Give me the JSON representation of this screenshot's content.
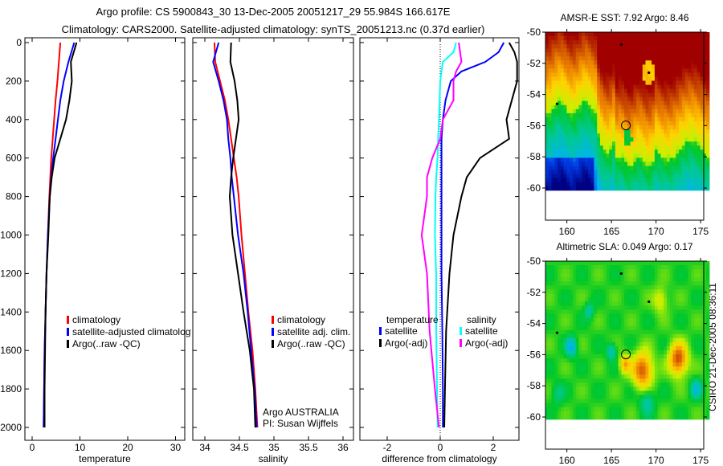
{
  "title_line1": "Argo profile: CS 5900843_30 13-Dec-2005 20051217_29 55.984S 166.617E",
  "title_line2": "Climatology: CARS2000. Satellite-adjusted climatology: synTS_20051213.nc (0.37d earlier)",
  "footer_vertical": "CSIRO 21-Dec-2005 08:36:11",
  "colors": {
    "red": "#ff0000",
    "blue": "#0000ff",
    "black": "#000000",
    "cyan": "#00ffff",
    "magenta": "#ff00ff"
  },
  "chart_data": [
    {
      "type": "line",
      "xlabel": "temperature",
      "ylabel": "",
      "xlim": [
        -0.5,
        32
      ],
      "ylim": [
        2000,
        0
      ],
      "xticks": [
        "0",
        "10",
        "20",
        "30"
      ],
      "xtick_values": [
        0,
        10,
        20,
        30
      ],
      "yticks": [
        "0",
        "200",
        "400",
        "600",
        "800",
        "1000",
        "1200",
        "1400",
        "1600",
        "1800",
        "2000"
      ],
      "ytick_values": [
        0,
        200,
        400,
        600,
        800,
        1000,
        1200,
        1400,
        1600,
        1800,
        2000
      ],
      "depth": [
        0,
        100,
        200,
        300,
        400,
        500,
        600,
        700,
        800,
        1000,
        1200,
        1400,
        1600,
        1800,
        2000
      ],
      "series": [
        {
          "name": "climatology",
          "color": "#ff0000",
          "values": [
            5.9,
            5.6,
            5.3,
            4.9,
            4.6,
            4.3,
            4.0,
            3.8,
            3.6,
            3.3,
            3.0,
            2.8,
            2.6,
            2.5,
            2.4
          ]
        },
        {
          "name": "satellite-adjusted climatology",
          "color": "#0000ff",
          "values": [
            8.8,
            7.6,
            6.6,
            5.9,
            5.4,
            4.9,
            4.4,
            4.0,
            3.7,
            3.3,
            3.0,
            2.8,
            2.6,
            2.5,
            2.4
          ]
        },
        {
          "name": "Argo(..raw -QC)",
          "color": "#000000",
          "values": [
            9.3,
            8.1,
            8.3,
            7.8,
            7.1,
            5.9,
            4.7,
            4.1,
            3.7,
            3.4,
            3.0,
            2.8,
            2.7,
            2.6,
            2.6
          ]
        }
      ]
    },
    {
      "type": "line",
      "xlabel": "salinity",
      "xlim": [
        33.8,
        36.1
      ],
      "ylim": [
        2000,
        0
      ],
      "xticks": [
        "34",
        "34.5",
        "35",
        "35.5",
        "36"
      ],
      "xtick_values": [
        34,
        34.5,
        35,
        35.5,
        36
      ],
      "depth": [
        0,
        100,
        200,
        300,
        400,
        500,
        600,
        700,
        800,
        1000,
        1200,
        1400,
        1600,
        1800,
        2000
      ],
      "series": [
        {
          "name": "climatology",
          "color": "#ff0000",
          "values": [
            34.14,
            34.15,
            34.22,
            34.29,
            34.34,
            34.38,
            34.42,
            34.46,
            34.49,
            34.53,
            34.58,
            34.63,
            34.69,
            34.73,
            34.76
          ]
        },
        {
          "name": "satellite adj. clim.",
          "color": "#0000ff",
          "values": [
            34.2,
            34.12,
            34.2,
            34.27,
            34.32,
            34.34,
            34.37,
            34.39,
            34.42,
            34.48,
            34.56,
            34.62,
            34.67,
            34.72,
            34.75
          ]
        },
        {
          "name": "Argo(..raw -QC)",
          "color": "#000000",
          "values": [
            34.38,
            34.37,
            34.43,
            34.47,
            34.49,
            34.45,
            34.41,
            34.38,
            34.36,
            34.4,
            34.48,
            34.56,
            34.65,
            34.71,
            34.73
          ]
        }
      ],
      "annotations": [
        "Argo AUSTRALIA",
        "PI: Susan Wijffels"
      ]
    },
    {
      "type": "line",
      "xlabel": "difference from climatology",
      "xlim": [
        -3,
        3
      ],
      "ylim": [
        2000,
        0
      ],
      "xticks": [
        "-2",
        "0",
        "2"
      ],
      "xtick_values": [
        -2,
        0,
        2
      ],
      "depth": [
        0,
        50,
        100,
        150,
        200,
        300,
        400,
        500,
        600,
        700,
        800,
        1000,
        1200,
        1500,
        1800,
        2000
      ],
      "legend_headers": [
        "temperature",
        "salinity"
      ],
      "series": [
        {
          "name": "satellite",
          "group": "temperature",
          "color": "#0000ff",
          "values": [
            2.4,
            2.2,
            1.7,
            0.8,
            0.4,
            0.2,
            0.1,
            0.05,
            0.05,
            0.05,
            0.05,
            0.05,
            0.05,
            0.08,
            0.1,
            0.1
          ]
        },
        {
          "name": "Argo(-adj)",
          "group": "temperature",
          "color": "#000000",
          "values": [
            2.6,
            2.8,
            2.9,
            2.9,
            2.9,
            2.7,
            2.5,
            2.6,
            1.5,
            1.0,
            0.8,
            0.5,
            0.35,
            0.22,
            0.18,
            0.15
          ]
        },
        {
          "name": "satellite",
          "group": "salinity",
          "color": "#00ffff",
          "values": [
            0.6,
            0.5,
            0.1,
            0.05,
            0.0,
            -0.02,
            -0.05,
            -0.08,
            -0.1,
            -0.15,
            -0.18,
            -0.2,
            -0.15,
            -0.15,
            -0.12,
            -0.1
          ]
        },
        {
          "name": "Argo(-adj)",
          "group": "salinity",
          "color": "#ff00ff",
          "values": [
            0.7,
            0.75,
            0.8,
            0.6,
            0.5,
            0.5,
            0.1,
            0.0,
            -0.3,
            -0.5,
            -0.5,
            -0.7,
            -0.5,
            -0.4,
            -0.2,
            -0.05
          ]
        }
      ]
    },
    {
      "type": "heatmap",
      "title": "AMSR-E SST: 7.92 Argo: 8.46",
      "xlim": [
        157.6,
        175.9
      ],
      "ylim": [
        -62,
        -50
      ],
      "xticks": [
        "160",
        "165",
        "170",
        "175"
      ],
      "xtick_values": [
        160,
        165,
        170,
        175
      ],
      "yticks": [
        "-50",
        "-52",
        "-54",
        "-56",
        "-58",
        "-60"
      ],
      "ytick_values": [
        -50,
        -52,
        -54,
        -56,
        -58,
        -60
      ],
      "marker": {
        "lon": 166.617,
        "lat": -55.984
      }
    },
    {
      "type": "heatmap",
      "title": "Altimetric SLA: 0.049 Argo: 0.17",
      "xlim": [
        157.6,
        175.9
      ],
      "ylim": [
        -62,
        -50
      ],
      "xticks": [
        "160",
        "165",
        "170",
        "175"
      ],
      "xtick_values": [
        160,
        165,
        170,
        175
      ],
      "yticks": [
        "-50",
        "-52",
        "-54",
        "-56",
        "-58",
        "-60"
      ],
      "ytick_values": [
        -50,
        -52,
        -54,
        -56,
        -58,
        -60
      ],
      "marker": {
        "lon": 166.617,
        "lat": -55.984
      }
    }
  ]
}
